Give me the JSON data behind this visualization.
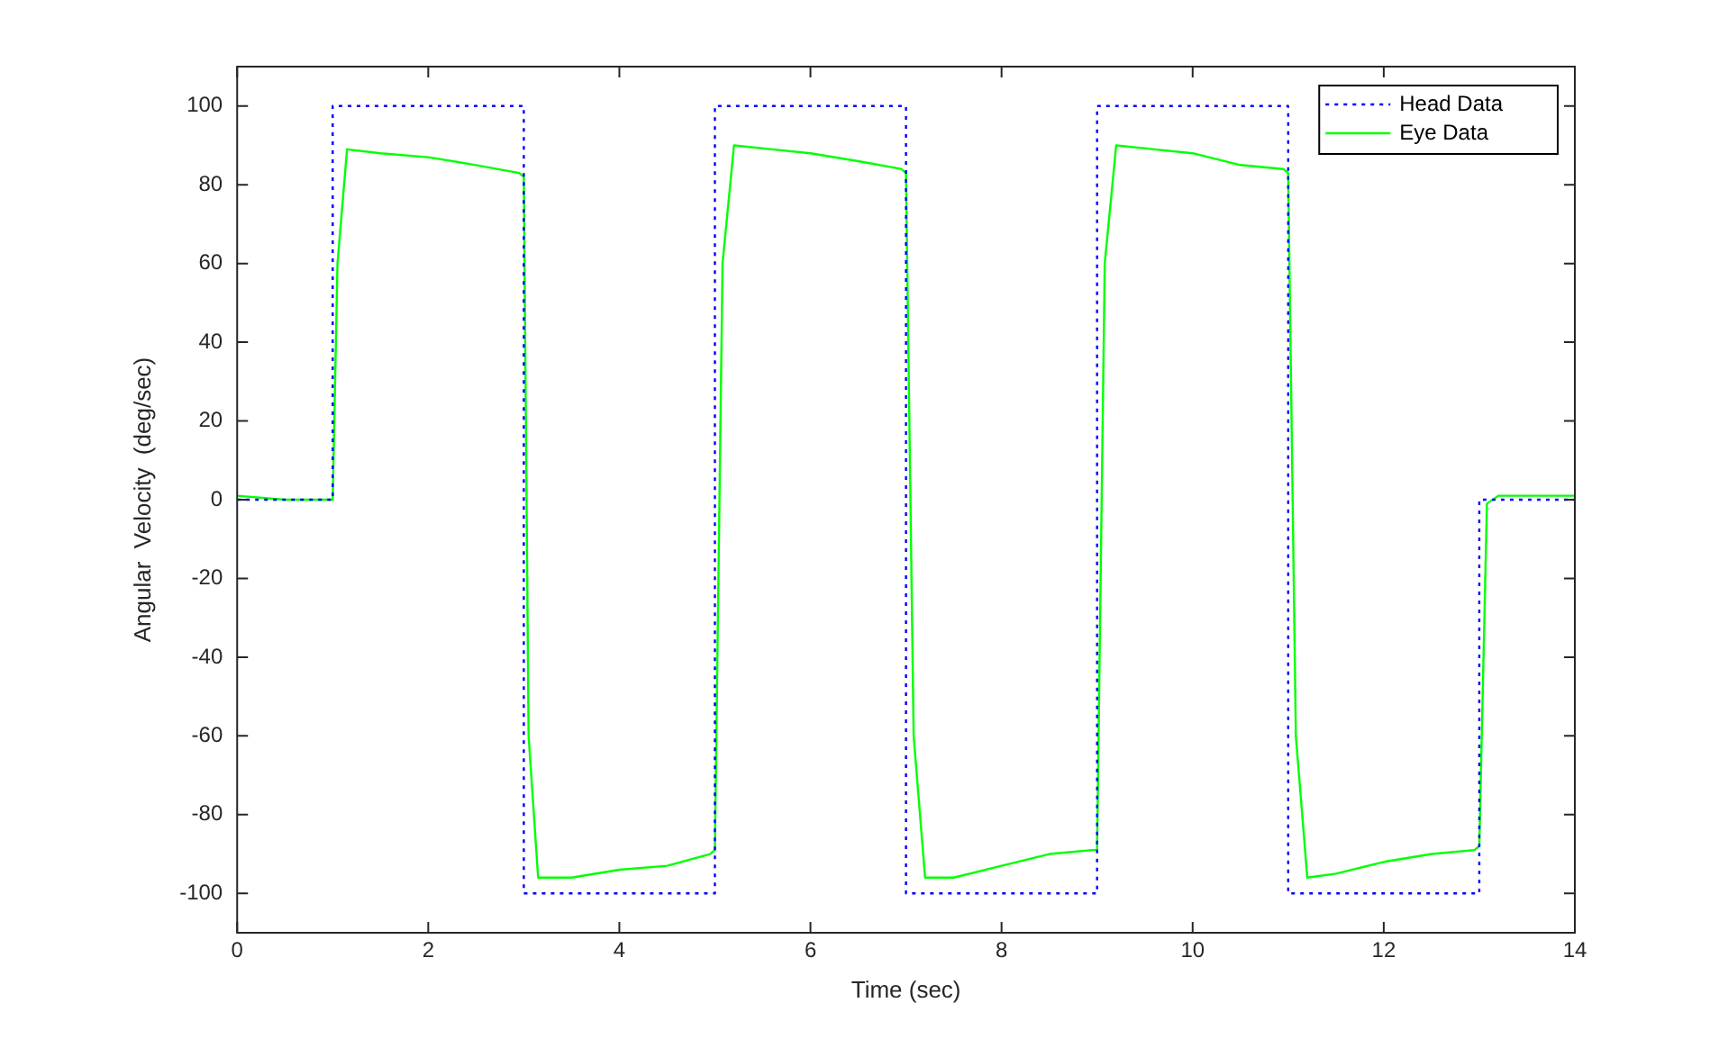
{
  "chart_data": {
    "type": "line",
    "xlabel": "Time (sec)",
    "ylabel": "Angular  Velocity  (deg/sec)",
    "xlim": [
      0,
      14
    ],
    "ylim": [
      -110,
      110
    ],
    "xticks": [
      0,
      2,
      4,
      6,
      8,
      10,
      12,
      14
    ],
    "yticks": [
      -100,
      -80,
      -60,
      -40,
      -20,
      0,
      20,
      40,
      60,
      80,
      100
    ],
    "grid": false,
    "legend": "top right",
    "marker": "none",
    "series": [
      {
        "name": "Head Data",
        "color": "#0000ff",
        "line_style": "dotted",
        "x": [
          0,
          1,
          1,
          3,
          3,
          5,
          5,
          7,
          7,
          9,
          9,
          11,
          11,
          13,
          13,
          14
        ],
        "values": [
          0,
          0,
          100,
          100,
          -100,
          -100,
          100,
          100,
          -100,
          -100,
          100,
          100,
          -100,
          -100,
          0,
          0
        ]
      },
      {
        "name": "Eye Data",
        "color": "#00ff00",
        "line_style": "solid",
        "x": [
          0,
          0.5,
          1,
          1.05,
          1.15,
          1.5,
          2,
          2.5,
          2.95,
          3.0,
          3.05,
          3.15,
          3.5,
          4,
          4.5,
          4.95,
          5.0,
          5.08,
          5.2,
          5.6,
          6,
          6.5,
          6.95,
          7.0,
          7.08,
          7.2,
          7.5,
          8,
          8.5,
          8.95,
          9.0,
          9.08,
          9.2,
          9.6,
          10,
          10.5,
          10.95,
          11.0,
          11.08,
          11.2,
          11.5,
          12,
          12.5,
          12.95,
          13.0,
          13.08,
          13.2,
          13.6,
          14
        ],
        "values": [
          1,
          0,
          0,
          60,
          89,
          88,
          87,
          85,
          83,
          82,
          -60,
          -96,
          -96,
          -94,
          -93,
          -90,
          -89,
          60,
          90,
          89,
          88,
          86,
          84,
          83,
          -60,
          -96,
          -96,
          -93,
          -90,
          -89,
          -89,
          60,
          90,
          89,
          88,
          85,
          84,
          83,
          -60,
          -96,
          -95,
          -92,
          -90,
          -89,
          -88,
          -1,
          1,
          1,
          1
        ]
      }
    ]
  }
}
